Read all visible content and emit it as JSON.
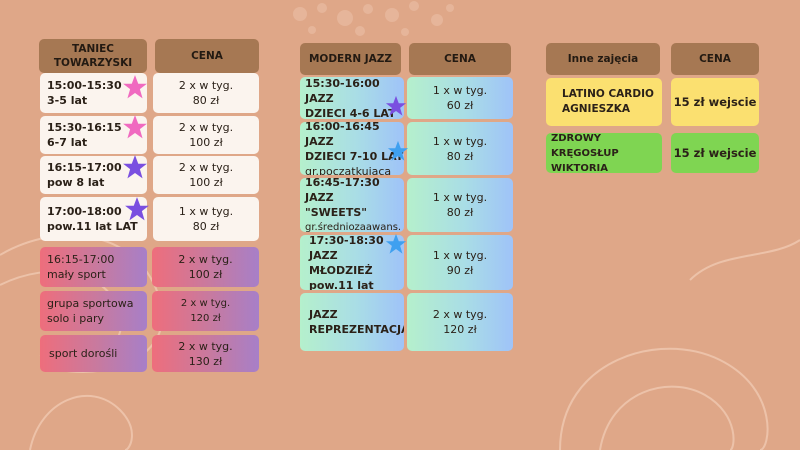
{
  "col1": {
    "header_title": "TANIEC TOWARZYSKI",
    "header_price": "CENA",
    "rows": [
      {
        "l1": "15:00-15:30",
        "l2": "3-5 lat",
        "p1": "2 x w tyg.",
        "p2": "80 zł",
        "star": "pink"
      },
      {
        "l1": "15:30-16:15",
        "l2": "6-7 lat",
        "p1": "2 x w tyg.",
        "p2": "100 zł",
        "star": "pink"
      },
      {
        "l1": "16:15-17:00",
        "l2": "pow 8 lat",
        "p1": "2 x w tyg.",
        "p2": "100 zł",
        "star": "purple"
      },
      {
        "l1": "17:00-18:00",
        "l2": "pow.11 lat LAT",
        "p1": "1 x w tyg.",
        "p2": "80 zł",
        "star": "purple"
      },
      {
        "l1": "16:15-17:00",
        "l2": "mały sport",
        "p1": "2 x w tyg.",
        "p2": "100 zł"
      },
      {
        "l1": "grupa sportowa",
        "l2": "solo i pary",
        "p1": "2 x w tyg.",
        "p2": "120 zł"
      },
      {
        "l1": "sport dorośli",
        "l2": "",
        "p1": "2 x w tyg.",
        "p2": "130 zł"
      }
    ]
  },
  "col2": {
    "header_title": "MODERN JAZZ",
    "header_price": "CENA",
    "rows": [
      {
        "l1": "15:30-16:00 JAZZ",
        "l2": "DZIECI 4-6 LAT",
        "l3": "",
        "p1": "1 x w tyg.",
        "p2": "60 zł",
        "star": "purple"
      },
      {
        "l1": "16:00-16:45 JAZZ",
        "l2": "DZIECI 7-10 LAT",
        "l3": "gr.początkujaca",
        "p1": "1 x w tyg.",
        "p2": "80 zł",
        "star": "blue"
      },
      {
        "l1": "16:45-17:30 JAZZ",
        "l2": "\"SWEETS\"",
        "l3": "gr.średniozaawans.",
        "p1": "1 x w tyg.",
        "p2": "80 zł"
      },
      {
        "l1": "17:30-18:30",
        "l2": "JAZZ MŁODZIEŻ",
        "l3": "pow.11 lat",
        "p1": "1 x w tyg.",
        "p2": "90 zł",
        "star": "blue"
      },
      {
        "l1": "JAZZ",
        "l2": "REPREZENTACJA",
        "l3": "",
        "p1": "2 x w tyg.",
        "p2": "120 zł"
      }
    ]
  },
  "col3": {
    "header_title": "Inne zajęcia",
    "header_price": "CENA",
    "rows": [
      {
        "l1": "LATINO CARDIO",
        "l2": "AGNIESZKA",
        "price": "15 zł wejscie"
      },
      {
        "l1": "ZDROWY KRĘGOSŁUP",
        "l2": "WIKTORIA",
        "price": "15 zł wejscie"
      }
    ]
  },
  "colors": {
    "background": "#dfa788",
    "header": "#a67853",
    "star_pink": "#f06ac0",
    "star_purple": "#7a4fe0",
    "star_blue": "#3fa0f0",
    "yellow": "#fbe070",
    "green": "#7fd552"
  }
}
